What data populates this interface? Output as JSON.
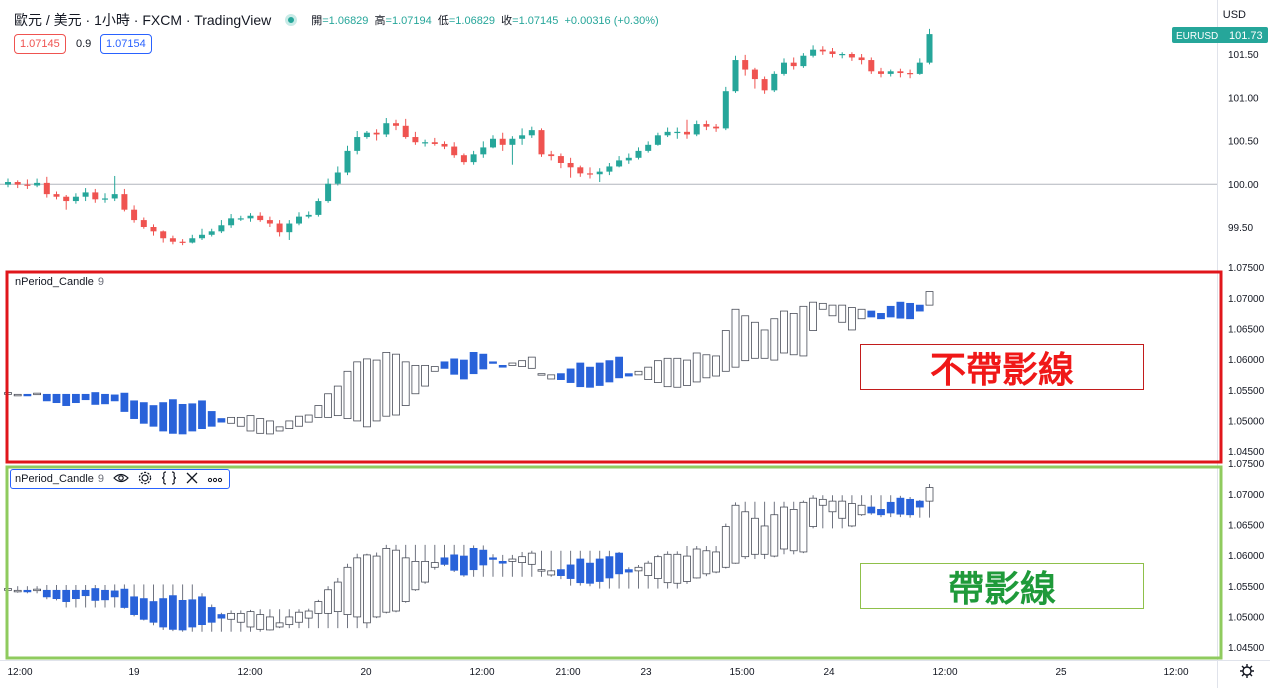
{
  "header": {
    "symbol": "歐元 / 美元 · 1小時 · FXCM · TradingView",
    "ohlc": [
      {
        "label": "開",
        "value": "=1.06829"
      },
      {
        "label": "高",
        "value": "=1.07194"
      },
      {
        "label": "低",
        "value": "=1.06829"
      },
      {
        "label": "收",
        "value": "=1.07145"
      },
      {
        "label": "",
        "value": "+0.00316 (+0.30%)"
      }
    ],
    "sell_price": "1.07145",
    "spread": "0.9",
    "buy_price": "1.07154",
    "currency": "USD"
  },
  "price_badge": {
    "symbol": "EURUSD",
    "value": "101.73"
  },
  "panes": {
    "indicator_1": {
      "name": "nPeriod_Candle",
      "param": "9"
    },
    "indicator_2": {
      "name": "nPeriod_Candle",
      "param": "9"
    }
  },
  "legend_icons": [
    "eye-icon",
    "gear-icon",
    "braces-icon",
    "close-icon",
    "more-icon"
  ],
  "annotations": {
    "no_wick": "不帶影線",
    "with_wick": "帶影線"
  },
  "colors": {
    "up": "#26a69a",
    "down": "#ef5350",
    "ind_up": "#ffffff",
    "ind_down": "#2962d9",
    "red_frame": "#e0161b",
    "green_frame": "#8fcb5e"
  },
  "chart_data": [
    {
      "type": "candlestick",
      "title": "歐元 / 美元 · 1小時 · FXCM · TradingView",
      "y_axis_ticks": [
        "101.50",
        "101.00",
        "100.50",
        "100.00",
        "99.50"
      ],
      "ylim": [
        99.2,
        101.9
      ],
      "baseline": 100.0,
      "close": [
        100.02,
        99.99,
        99.98,
        100.01,
        99.88,
        99.85,
        99.8,
        99.85,
        99.9,
        99.82,
        99.83,
        99.88,
        99.7,
        99.58,
        99.5,
        99.45,
        99.37,
        99.33,
        99.32,
        99.37,
        99.41,
        99.45,
        99.52,
        99.6,
        99.6,
        99.63,
        99.58,
        99.54,
        99.44,
        99.54,
        99.62,
        99.64,
        99.8,
        100.0,
        100.13,
        100.38,
        100.54,
        100.59,
        100.57,
        100.7,
        100.67,
        100.54,
        100.48,
        100.48,
        100.46,
        100.43,
        100.33,
        100.25,
        100.34,
        100.42,
        100.52,
        100.45,
        100.52,
        100.56,
        100.62,
        100.34,
        100.32,
        100.24,
        100.19,
        100.12,
        100.11,
        100.14,
        100.2,
        100.27,
        100.3,
        100.38,
        100.45,
        100.56,
        100.6,
        100.6,
        100.57,
        100.69,
        100.66,
        100.64,
        101.07,
        101.43,
        101.32,
        101.21,
        101.08,
        101.27,
        101.4,
        101.36,
        101.48,
        101.55,
        101.53,
        101.5,
        101.5,
        101.46,
        101.43,
        101.3,
        101.27,
        101.3,
        101.28,
        101.27,
        101.4,
        101.73
      ],
      "high": [
        100.06,
        100.04,
        100.05,
        100.06,
        100.08,
        99.91,
        99.87,
        99.89,
        99.95,
        99.94,
        99.89,
        100.09,
        99.94,
        99.75,
        99.61,
        99.53,
        99.46,
        99.4,
        99.36,
        99.41,
        99.48,
        99.48,
        99.58,
        99.65,
        99.63,
        99.66,
        99.67,
        99.62,
        99.58,
        99.58,
        99.67,
        99.68,
        99.83,
        100.06,
        100.2,
        100.44,
        100.61,
        100.61,
        100.63,
        100.76,
        100.74,
        100.75,
        100.6,
        100.51,
        100.53,
        100.49,
        100.48,
        100.35,
        100.38,
        100.49,
        100.56,
        100.59,
        100.55,
        100.64,
        100.66,
        100.64,
        100.38,
        100.35,
        100.3,
        100.21,
        100.19,
        100.18,
        100.24,
        100.32,
        100.35,
        100.42,
        100.49,
        100.59,
        100.65,
        100.65,
        100.74,
        100.73,
        100.73,
        100.69,
        101.12,
        101.48,
        101.49,
        101.34,
        101.24,
        101.3,
        101.45,
        101.46,
        101.51,
        101.6,
        101.59,
        101.57,
        101.52,
        101.52,
        101.5,
        101.46,
        101.34,
        101.32,
        101.33,
        101.32,
        101.45,
        101.79
      ],
      "low": [
        99.96,
        99.95,
        99.94,
        99.96,
        99.84,
        99.82,
        99.7,
        99.77,
        99.8,
        99.78,
        99.78,
        99.8,
        99.68,
        99.55,
        99.48,
        99.4,
        99.32,
        99.3,
        99.29,
        99.31,
        99.35,
        99.39,
        99.43,
        99.49,
        99.57,
        99.56,
        99.56,
        99.5,
        99.39,
        99.35,
        99.52,
        99.6,
        99.62,
        99.78,
        99.98,
        100.1,
        100.34,
        100.52,
        100.5,
        100.54,
        100.62,
        100.52,
        100.45,
        100.43,
        100.44,
        100.4,
        100.3,
        100.22,
        100.22,
        100.3,
        100.41,
        100.38,
        100.22,
        100.45,
        100.53,
        100.31,
        100.27,
        100.18,
        100.07,
        100.08,
        100.06,
        100.02,
        100.1,
        100.19,
        100.23,
        100.28,
        100.36,
        100.44,
        100.54,
        100.52,
        100.52,
        100.55,
        100.62,
        100.6,
        100.62,
        101.05,
        101.25,
        101.1,
        101.04,
        101.06,
        101.25,
        101.32,
        101.34,
        101.46,
        101.49,
        101.46,
        101.45,
        101.42,
        101.38,
        101.27,
        101.23,
        101.24,
        101.23,
        101.22,
        101.26,
        101.38
      ]
    },
    {
      "type": "candlestick",
      "title": "nPeriod_Candle 9",
      "y_axis_ticks": [
        "1.07000",
        "1.06500",
        "1.06000",
        "1.05500",
        "1.05000",
        "1.04500"
      ],
      "ylim": [
        1.0438,
        1.0752
      ],
      "style": "no-wick"
    },
    {
      "type": "candlestick",
      "title": "nPeriod_Candle 9",
      "y_axis_ticks": [
        "1.07000",
        "1.06500",
        "1.06000",
        "1.05500",
        "1.05000",
        "1.04500"
      ],
      "ylim": [
        1.0438,
        1.0752
      ],
      "style": "with-wick"
    }
  ],
  "x_axis_labels": [
    "12:00",
    "19",
    "12:00",
    "20",
    "12:00",
    "21:00",
    "23",
    "15:00",
    "24",
    "12:00",
    "25",
    "12:00"
  ],
  "top_axis_partial": "1.07500"
}
